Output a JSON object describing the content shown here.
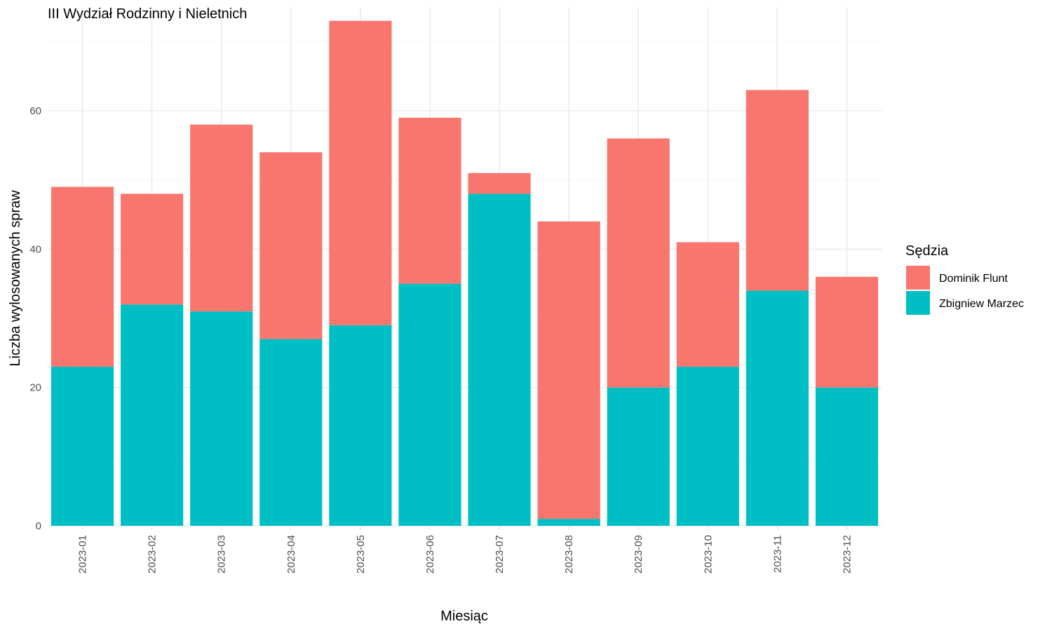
{
  "chart_data": {
    "type": "bar",
    "stacked": true,
    "title": "III Wydział Rodzinny i Nieletnich",
    "xlabel": "Miesiąc",
    "ylabel": "Liczba wylosowanych spraw",
    "categories": [
      "2023-01",
      "2023-02",
      "2023-03",
      "2023-04",
      "2023-05",
      "2023-06",
      "2023-07",
      "2023-08",
      "2023-09",
      "2023-10",
      "2023-11",
      "2023-12"
    ],
    "series": [
      {
        "name": "Zbigniew Marzec",
        "color": "#00BFC4",
        "values": [
          23,
          32,
          31,
          27,
          29,
          35,
          48,
          1,
          20,
          23,
          34,
          20
        ]
      },
      {
        "name": "Dominik Flunt",
        "color": "#F8766D",
        "values": [
          26,
          16,
          27,
          27,
          44,
          24,
          3,
          43,
          36,
          18,
          29,
          16
        ]
      }
    ],
    "ylim": [
      0,
      75
    ],
    "yticks": [
      0,
      20,
      40,
      60
    ],
    "grid": true,
    "legend": {
      "title": "Sędzia",
      "position": "right",
      "entries": [
        "Dominik Flunt",
        "Zbigniew Marzec"
      ]
    }
  }
}
